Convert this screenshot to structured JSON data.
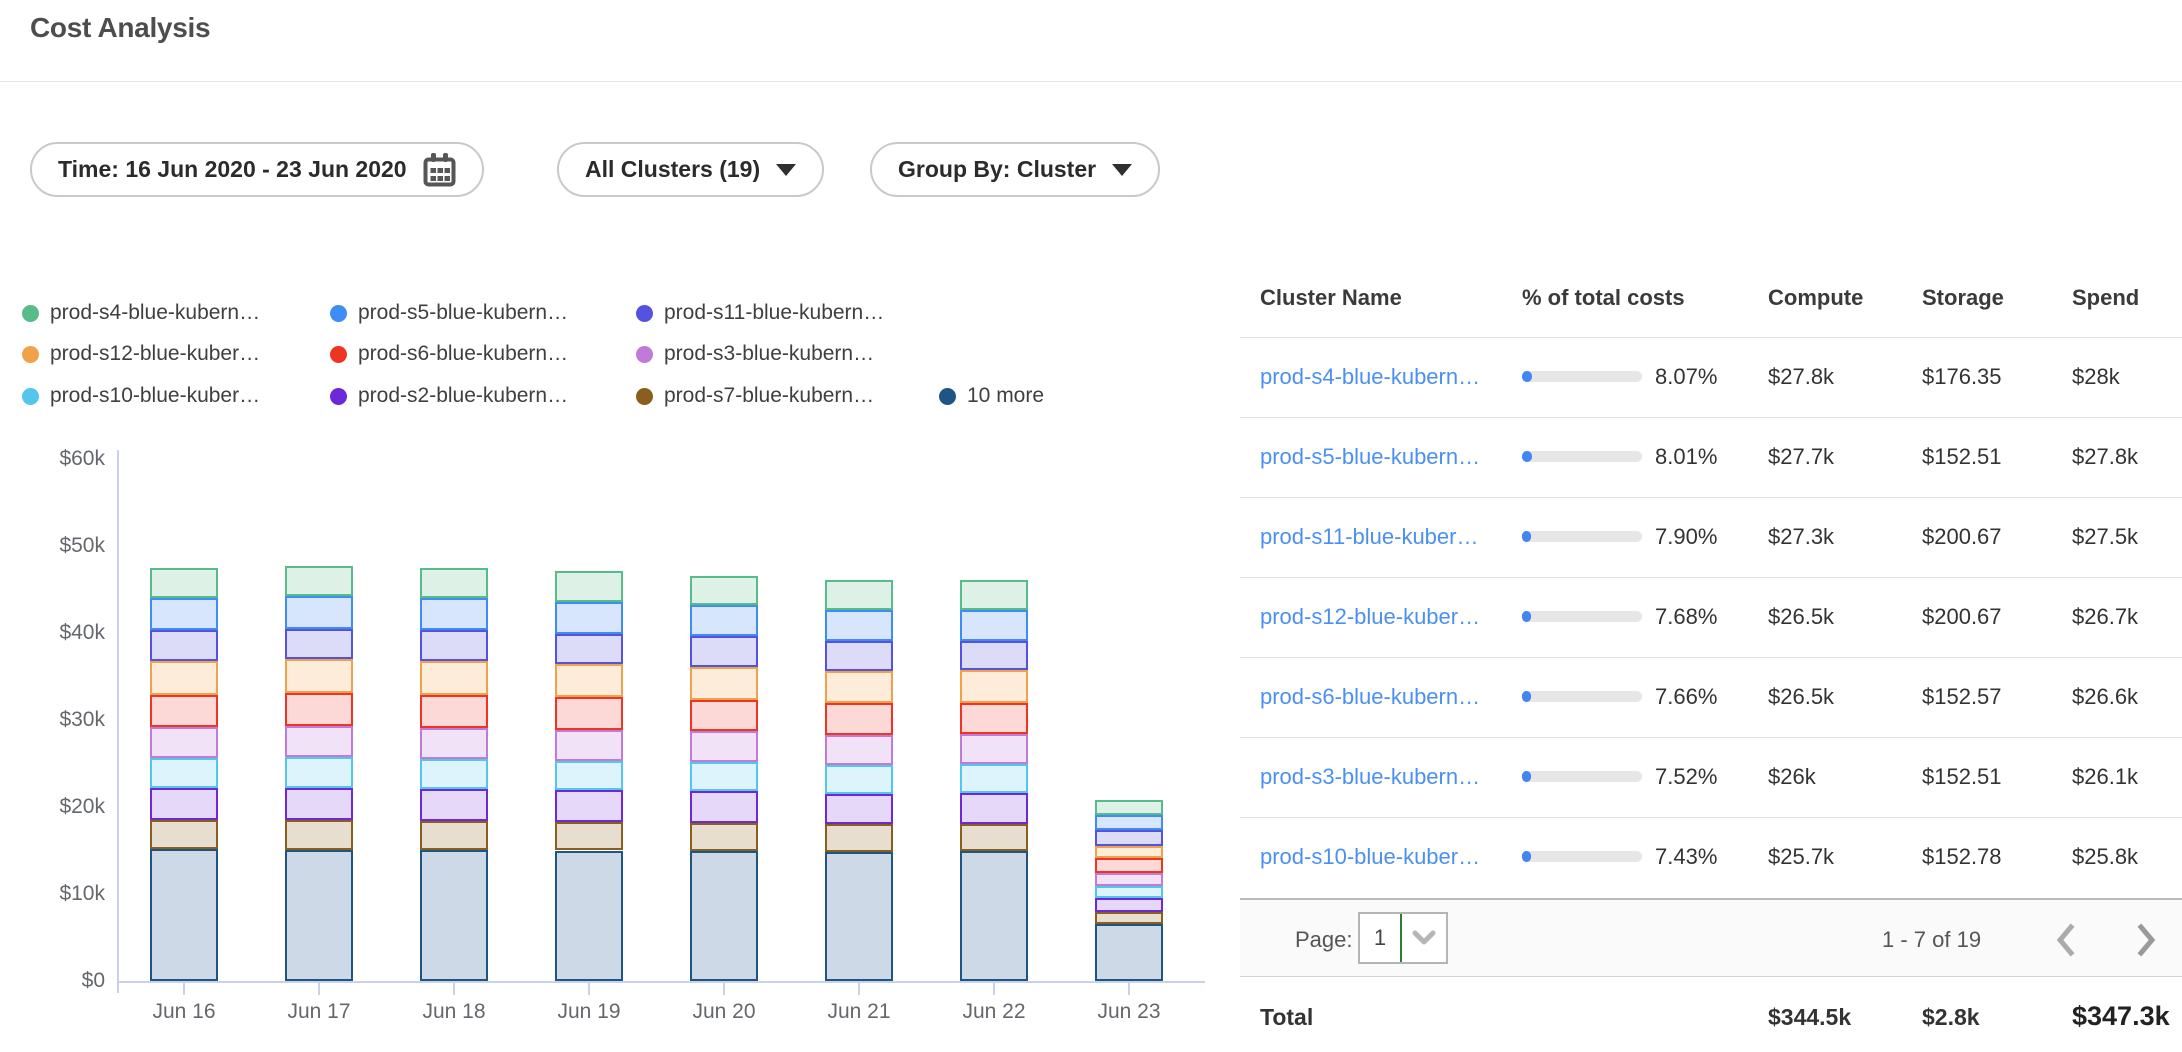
{
  "header": {
    "title": "Cost Analysis"
  },
  "filters": {
    "time_label": "Time: 16 Jun 2020 - 23 Jun 2020",
    "clusters_label": "All Clusters (19)",
    "group_by_label": "Group By: Cluster"
  },
  "legend": {
    "items": [
      {
        "label": "prod-s4-blue-kubern…",
        "color": "#57bb8a"
      },
      {
        "label": "prod-s5-blue-kubern…",
        "color": "#3d8df5"
      },
      {
        "label": "prod-s11-blue-kubern…",
        "color": "#5552e0"
      },
      {
        "label": "prod-s12-blue-kuber…",
        "color": "#f0a24a"
      },
      {
        "label": "prod-s6-blue-kubern…",
        "color": "#ee3524"
      },
      {
        "label": "prod-s3-blue-kubern…",
        "color": "#c07ad8"
      },
      {
        "label": "prod-s10-blue-kuber…",
        "color": "#54c6ec"
      },
      {
        "label": "prod-s2-blue-kubern…",
        "color": "#6d28d9"
      },
      {
        "label": "prod-s7-blue-kubern…",
        "color": "#8a5f1e"
      },
      {
        "label": "10 more",
        "color": "#1f5582"
      }
    ]
  },
  "chart_data": {
    "type": "bar",
    "stacked": true,
    "unit": "USD thousands per day",
    "categories": [
      "Jun 16",
      "Jun 17",
      "Jun 18",
      "Jun 19",
      "Jun 20",
      "Jun 21",
      "Jun 22",
      "Jun 23"
    ],
    "series": [
      {
        "name": "10 more",
        "color": "#1f5582",
        "fill": "#cdd9e6",
        "values": [
          15.2,
          15.1,
          15.1,
          15.0,
          14.9,
          14.8,
          14.9,
          6.5
        ]
      },
      {
        "name": "prod-s7-blue-kubern…",
        "color": "#8a5f1e",
        "fill": "#e7decf",
        "values": [
          3.3,
          3.4,
          3.3,
          3.3,
          3.3,
          3.2,
          3.2,
          1.4
        ]
      },
      {
        "name": "prod-s2-blue-kubern…",
        "color": "#6d28d9",
        "fill": "#e5d8f8",
        "values": [
          3.7,
          3.7,
          3.7,
          3.6,
          3.6,
          3.5,
          3.5,
          1.6
        ]
      },
      {
        "name": "prod-s10-blue-kuber…",
        "color": "#54c6ec",
        "fill": "#def4fc",
        "values": [
          3.4,
          3.5,
          3.4,
          3.4,
          3.4,
          3.3,
          3.3,
          1.4
        ]
      },
      {
        "name": "prod-s3-blue-kubern…",
        "color": "#c07ad8",
        "fill": "#f2e2f8",
        "values": [
          3.6,
          3.6,
          3.6,
          3.6,
          3.5,
          3.5,
          3.5,
          1.5
        ]
      },
      {
        "name": "prod-s6-blue-kubern…",
        "color": "#ee3524",
        "fill": "#fcd9d6",
        "values": [
          3.7,
          3.8,
          3.8,
          3.7,
          3.6,
          3.6,
          3.6,
          1.7
        ]
      },
      {
        "name": "prod-s12-blue-kuber…",
        "color": "#f0a24a",
        "fill": "#fcecd9",
        "values": [
          3.9,
          3.9,
          3.9,
          3.8,
          3.8,
          3.7,
          3.7,
          1.4
        ]
      },
      {
        "name": "prod-s11-blue-kubern…",
        "color": "#5552e0",
        "fill": "#dcdcf9",
        "values": [
          3.5,
          3.5,
          3.5,
          3.5,
          3.5,
          3.5,
          3.4,
          1.9
        ]
      },
      {
        "name": "prod-s5-blue-kubern…",
        "color": "#3d8df5",
        "fill": "#d8e6fd",
        "values": [
          3.7,
          3.8,
          3.7,
          3.7,
          3.6,
          3.5,
          3.6,
          1.7
        ]
      },
      {
        "name": "prod-s4-blue-kubern…",
        "color": "#57bb8a",
        "fill": "#ddf1e7",
        "values": [
          3.5,
          3.4,
          3.5,
          3.5,
          3.3,
          3.5,
          3.4,
          1.7
        ]
      }
    ],
    "y_ticks": [
      "$0",
      "$10k",
      "$20k",
      "$30k",
      "$40k",
      "$50k",
      "$60k"
    ],
    "ylim_k": [
      0,
      60
    ],
    "grid": false,
    "legend_position": "top-left"
  },
  "table": {
    "columns": [
      "Cluster Name",
      "% of total costs",
      "Compute",
      "Storage",
      "Spend"
    ],
    "rows": [
      {
        "name": "prod-s4-blue-kubern…",
        "pct": "8.07%",
        "compute": "$27.8k",
        "storage": "$176.35",
        "spend": "$28k"
      },
      {
        "name": "prod-s5-blue-kubern…",
        "pct": "8.01%",
        "compute": "$27.7k",
        "storage": "$152.51",
        "spend": "$27.8k"
      },
      {
        "name": "prod-s11-blue-kuber…",
        "pct": "7.90%",
        "compute": "$27.3k",
        "storage": "$200.67",
        "spend": "$27.5k"
      },
      {
        "name": "prod-s12-blue-kuber…",
        "pct": "7.68%",
        "compute": "$26.5k",
        "storage": "$200.67",
        "spend": "$26.7k"
      },
      {
        "name": "prod-s6-blue-kubern…",
        "pct": "7.66%",
        "compute": "$26.5k",
        "storage": "$152.57",
        "spend": "$26.6k"
      },
      {
        "name": "prod-s3-blue-kubern…",
        "pct": "7.52%",
        "compute": "$26k",
        "storage": "$152.51",
        "spend": "$26.1k"
      },
      {
        "name": "prod-s10-blue-kuber…",
        "pct": "7.43%",
        "compute": "$25.7k",
        "storage": "$152.78",
        "spend": "$25.8k"
      }
    ],
    "pagination": {
      "label": "Page:",
      "page": "1",
      "range": "1 - 7 of 19"
    },
    "total": {
      "label": "Total",
      "compute": "$344.5k",
      "storage": "$2.8k",
      "spend": "$347.3k"
    }
  },
  "colors": {
    "accent_blue": "#4285f4",
    "link_blue": "#4a90f2",
    "axis_line": "#c9d2ea",
    "progress_track": "#e6e6e6",
    "select_caret_green": "#2e7d32"
  }
}
